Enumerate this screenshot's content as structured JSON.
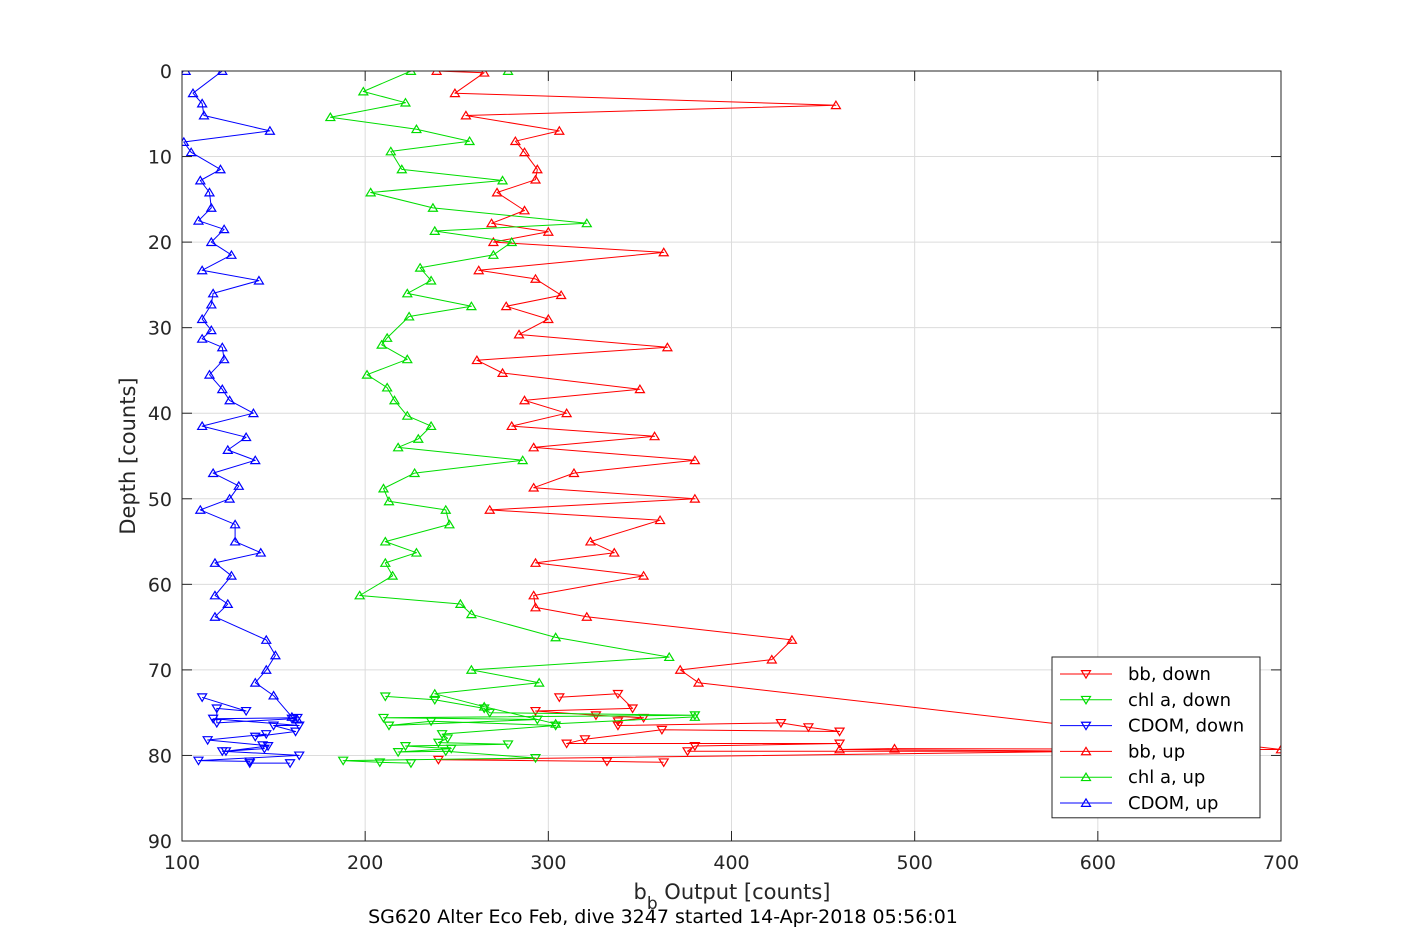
{
  "caption": "SG620 Alter Eco Feb, dive 3247 started 14-Apr-2018 05:56:01",
  "chart_data": {
    "type": "line",
    "title": "",
    "xlabel_main": "b",
    "xlabel_sub": "b",
    "xlabel_rest": " Output [counts]",
    "ylabel": "Depth [counts]",
    "xlim": [
      100,
      700
    ],
    "ylim": [
      0,
      90
    ],
    "y_reversed": true,
    "xticks": [
      100,
      200,
      300,
      400,
      500,
      600,
      700
    ],
    "yticks": [
      0,
      10,
      20,
      30,
      40,
      50,
      60,
      70,
      80,
      90
    ],
    "grid": true,
    "legend_position": "bottom-right",
    "series": [
      {
        "name": "bb, down",
        "color": "#ff0000",
        "marker": "triangle-down",
        "points": [
          [
            306,
            73.2
          ],
          [
            338,
            72.8
          ],
          [
            346,
            74.5
          ],
          [
            293,
            74.8
          ],
          [
            326,
            75.3
          ],
          [
            352,
            75.6
          ],
          [
            338,
            76.0
          ],
          [
            338,
            76.5
          ],
          [
            427,
            76.2
          ],
          [
            442,
            76.7
          ],
          [
            459,
            77.2
          ],
          [
            362,
            77.0
          ],
          [
            320,
            78.1
          ],
          [
            310,
            78.6
          ],
          [
            459,
            78.6
          ],
          [
            380,
            78.9
          ],
          [
            376,
            79.5
          ],
          [
            600,
            79.5
          ],
          [
            240,
            80.5
          ],
          [
            332,
            80.7
          ],
          [
            363,
            80.8
          ]
        ]
      },
      {
        "name": "chl a, down",
        "color": "#00dd00",
        "marker": "triangle-down",
        "points": [
          [
            211,
            73.1
          ],
          [
            238,
            73.5
          ],
          [
            265,
            74.5
          ],
          [
            268,
            75.0
          ],
          [
            380,
            75.3
          ],
          [
            210,
            75.6
          ],
          [
            294,
            75.8
          ],
          [
            213,
            76.5
          ],
          [
            236,
            76.0
          ],
          [
            304,
            76.5
          ],
          [
            242,
            77.5
          ],
          [
            245,
            78.0
          ],
          [
            240,
            78.5
          ],
          [
            278,
            78.7
          ],
          [
            222,
            78.9
          ],
          [
            247,
            79.2
          ],
          [
            218,
            79.6
          ],
          [
            244,
            79.5
          ],
          [
            293,
            80.3
          ],
          [
            188,
            80.6
          ],
          [
            208,
            80.8
          ],
          [
            225,
            80.9
          ]
        ]
      },
      {
        "name": "CDOM, down",
        "color": "#0000ff",
        "marker": "triangle-down",
        "points": [
          [
            111,
            73.2
          ],
          [
            135,
            74.8
          ],
          [
            119,
            74.5
          ],
          [
            119,
            76.2
          ],
          [
            160,
            75.7
          ],
          [
            163,
            75.6
          ],
          [
            117,
            75.7
          ],
          [
            164,
            76.5
          ],
          [
            150,
            76.5
          ],
          [
            162,
            77.2
          ],
          [
            140,
            77.8
          ],
          [
            146,
            77.5
          ],
          [
            114,
            78.2
          ],
          [
            144,
            78.8
          ],
          [
            147,
            78.9
          ],
          [
            124,
            79.5
          ],
          [
            145,
            79.2
          ],
          [
            122,
            79.5
          ],
          [
            164,
            80.0
          ],
          [
            109,
            80.6
          ],
          [
            137,
            80.7
          ],
          [
            137,
            80.9
          ],
          [
            159,
            80.9
          ]
        ]
      },
      {
        "name": "bb, up",
        "color": "#ff0000",
        "marker": "triangle-up",
        "points": [
          [
            239,
            0
          ],
          [
            265,
            0.2
          ],
          [
            249,
            2.6
          ],
          [
            457,
            4.0
          ],
          [
            255,
            5.2
          ],
          [
            306,
            7.0
          ],
          [
            282,
            8.2
          ],
          [
            287,
            9.5
          ],
          [
            294,
            11.5
          ],
          [
            293,
            12.7
          ],
          [
            272,
            14.2
          ],
          [
            287,
            16.3
          ],
          [
            269,
            17.8
          ],
          [
            300,
            18.8
          ],
          [
            270,
            20.0
          ],
          [
            363,
            21.2
          ],
          [
            262,
            23.3
          ],
          [
            293,
            24.3
          ],
          [
            307,
            26.2
          ],
          [
            277,
            27.5
          ],
          [
            300,
            29.0
          ],
          [
            284,
            30.8
          ],
          [
            365,
            32.3
          ],
          [
            261,
            33.8
          ],
          [
            275,
            35.3
          ],
          [
            350,
            37.2
          ],
          [
            287,
            38.5
          ],
          [
            310,
            40.0
          ],
          [
            280,
            41.5
          ],
          [
            358,
            42.7
          ],
          [
            292,
            44.0
          ],
          [
            380,
            45.5
          ],
          [
            314,
            47.0
          ],
          [
            292,
            48.7
          ],
          [
            380,
            50.0
          ],
          [
            268,
            51.3
          ],
          [
            361,
            52.5
          ],
          [
            323,
            55.0
          ],
          [
            336,
            56.3
          ],
          [
            293,
            57.5
          ],
          [
            352,
            59.0
          ],
          [
            292,
            61.3
          ],
          [
            293,
            62.7
          ],
          [
            321,
            63.8
          ],
          [
            433,
            66.5
          ],
          [
            422,
            68.8
          ],
          [
            372,
            70.0
          ],
          [
            382,
            71.5
          ],
          [
            700,
            79.3
          ],
          [
            489,
            79.2
          ],
          [
            459,
            79.3
          ],
          [
            600,
            79.5
          ]
        ]
      },
      {
        "name": "chl a, up",
        "color": "#00dd00",
        "marker": "triangle-up",
        "points": [
          [
            278,
            0
          ],
          [
            225,
            0
          ],
          [
            199,
            2.4
          ],
          [
            222,
            3.7
          ],
          [
            181,
            5.4
          ],
          [
            228,
            6.8
          ],
          [
            257,
            8.2
          ],
          [
            214,
            9.4
          ],
          [
            220,
            11.5
          ],
          [
            275,
            12.8
          ],
          [
            203,
            14.2
          ],
          [
            237,
            16.0
          ],
          [
            321,
            17.8
          ],
          [
            238,
            18.7
          ],
          [
            280,
            20.0
          ],
          [
            270,
            21.5
          ],
          [
            230,
            23.0
          ],
          [
            236,
            24.5
          ],
          [
            223,
            26.0
          ],
          [
            258,
            27.5
          ],
          [
            224,
            28.7
          ],
          [
            212,
            31.2
          ],
          [
            209,
            32.0
          ],
          [
            223,
            33.7
          ],
          [
            201,
            35.5
          ],
          [
            212,
            37.0
          ],
          [
            216,
            38.5
          ],
          [
            223,
            40.3
          ],
          [
            236,
            41.5
          ],
          [
            229,
            43.0
          ],
          [
            218,
            44.0
          ],
          [
            286,
            45.5
          ],
          [
            227,
            47.0
          ],
          [
            210,
            48.8
          ],
          [
            213,
            50.3
          ],
          [
            244,
            51.3
          ],
          [
            246,
            53.0
          ],
          [
            211,
            55.0
          ],
          [
            228,
            56.3
          ],
          [
            211,
            57.5
          ],
          [
            215,
            59.0
          ],
          [
            197,
            61.3
          ],
          [
            252,
            62.3
          ],
          [
            258,
            63.5
          ],
          [
            304,
            66.2
          ],
          [
            366,
            68.5
          ],
          [
            258,
            70.0
          ],
          [
            295,
            71.5
          ],
          [
            238,
            72.8
          ],
          [
            265,
            74.3
          ],
          [
            304,
            76.3
          ],
          [
            380,
            75.5
          ]
        ]
      },
      {
        "name": "CDOM, up",
        "color": "#0000ff",
        "marker": "triangle-up",
        "points": [
          [
            102,
            0
          ],
          [
            122,
            0
          ],
          [
            106,
            2.6
          ],
          [
            111,
            3.8
          ],
          [
            112,
            5.2
          ],
          [
            148,
            7.0
          ],
          [
            101,
            8.3
          ],
          [
            105,
            9.5
          ],
          [
            121,
            11.5
          ],
          [
            110,
            12.8
          ],
          [
            115,
            14.2
          ],
          [
            116,
            16.0
          ],
          [
            109,
            17.5
          ],
          [
            123,
            18.5
          ],
          [
            116,
            20.0
          ],
          [
            127,
            21.5
          ],
          [
            111,
            23.3
          ],
          [
            142,
            24.5
          ],
          [
            117,
            26.0
          ],
          [
            116,
            27.3
          ],
          [
            111,
            29.0
          ],
          [
            116,
            30.3
          ],
          [
            111,
            31.3
          ],
          [
            122,
            32.3
          ],
          [
            123,
            33.7
          ],
          [
            115,
            35.5
          ],
          [
            122,
            37.2
          ],
          [
            126,
            38.5
          ],
          [
            139,
            40.0
          ],
          [
            111,
            41.5
          ],
          [
            135,
            42.8
          ],
          [
            125,
            44.3
          ],
          [
            140,
            45.5
          ],
          [
            117,
            47.0
          ],
          [
            131,
            48.5
          ],
          [
            126,
            50.0
          ],
          [
            110,
            51.3
          ],
          [
            129,
            53.0
          ],
          [
            129,
            55.0
          ],
          [
            143,
            56.3
          ],
          [
            118,
            57.5
          ],
          [
            127,
            59.0
          ],
          [
            118,
            61.3
          ],
          [
            125,
            62.3
          ],
          [
            118,
            63.8
          ],
          [
            146,
            66.5
          ],
          [
            151,
            68.3
          ],
          [
            146,
            70.0
          ],
          [
            140,
            71.5
          ],
          [
            150,
            73.0
          ],
          [
            160,
            75.5
          ],
          [
            163,
            75.8
          ]
        ]
      }
    ]
  }
}
